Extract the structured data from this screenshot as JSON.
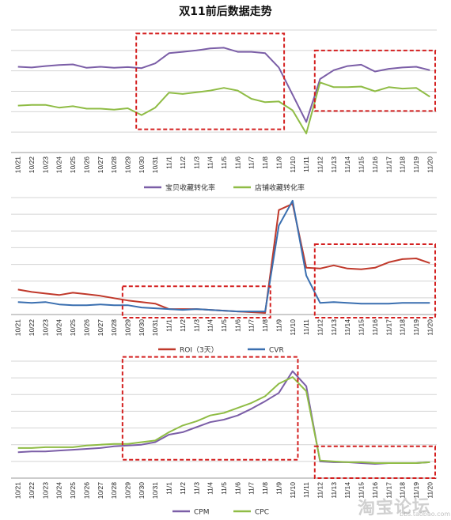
{
  "page_title": "双11前后数据走势",
  "watermark": {
    "brand": "淘宝论坛",
    "url": "bbs.taobao.com"
  },
  "chart_data": [
    {
      "type": "line",
      "x": [
        "10/21",
        "10/22",
        "10/23",
        "10/24",
        "10/25",
        "10/26",
        "10/27",
        "10/28",
        "10/29",
        "10/30",
        "10/31",
        "11/1",
        "11/2",
        "11/3",
        "11/4",
        "11/5",
        "11/6",
        "11/7",
        "11/8",
        "11/9",
        "11/10",
        "11/11",
        "11/12",
        "11/13",
        "11/14",
        "11/15",
        "11/16",
        "11/17",
        "11/18",
        "11/19",
        "11/20"
      ],
      "series": [
        {
          "name": "宝贝收藏转化率",
          "color": "#7b5ea7",
          "values": [
            6.6,
            6.5,
            6.7,
            6.85,
            6.95,
            6.45,
            6.6,
            6.45,
            6.55,
            6.4,
            7.1,
            8.6,
            8.8,
            9.0,
            9.3,
            9.4,
            8.8,
            8.8,
            8.6,
            6.5,
            2.5,
            -1.5,
            4.8,
            6.1,
            6.7,
            6.9,
            5.9,
            6.3,
            6.5,
            6.6,
            6.1
          ]
        },
        {
          "name": "店铺收藏转化率",
          "color": "#8fbc45",
          "values": [
            0.9,
            1.0,
            1.0,
            0.6,
            0.8,
            0.45,
            0.45,
            0.3,
            0.5,
            -0.5,
            0.6,
            2.8,
            2.6,
            2.85,
            3.1,
            3.5,
            3.1,
            1.9,
            1.4,
            1.5,
            0.2,
            -3.2,
            4.3,
            3.6,
            3.6,
            3.7,
            3.0,
            3.6,
            3.4,
            3.5,
            2.2
          ]
        }
      ],
      "ylim": [
        -6,
        12
      ],
      "gridlines": 6,
      "highlight_boxes": [
        {
          "from": "10/30",
          "to": "11/9"
        },
        {
          "from": "11/12",
          "to": "11/20"
        }
      ]
    },
    {
      "type": "line",
      "x": [
        "10/21",
        "10/22",
        "10/23",
        "10/24",
        "10/25",
        "10/26",
        "10/27",
        "10/28",
        "10/29",
        "10/30",
        "10/31",
        "11/1",
        "11/2",
        "11/3",
        "11/4",
        "11/5",
        "11/6",
        "11/7",
        "11/8",
        "11/9",
        "11/10",
        "11/11",
        "11/12",
        "11/13",
        "11/14",
        "11/15",
        "11/16",
        "11/17",
        "11/18",
        "11/19",
        "11/20"
      ],
      "series": [
        {
          "name": "ROI（3天）",
          "color": "#c0392b",
          "values": [
            1.6,
            1.45,
            1.35,
            1.25,
            1.4,
            1.3,
            1.2,
            1.05,
            0.9,
            0.8,
            0.7,
            0.35,
            0.35,
            0.35,
            0.3,
            0.25,
            0.2,
            0.15,
            0.1,
            6.7,
            7.1,
            3.0,
            2.95,
            3.15,
            2.95,
            2.9,
            3.0,
            3.35,
            3.55,
            3.6,
            3.3
          ]
        },
        {
          "name": "CVR",
          "color": "#3a6fb0",
          "values": [
            0.8,
            0.75,
            0.8,
            0.65,
            0.6,
            0.6,
            0.65,
            0.6,
            0.6,
            0.45,
            0.4,
            0.35,
            0.3,
            0.35,
            0.3,
            0.25,
            0.2,
            0.2,
            0.2,
            5.7,
            7.3,
            2.5,
            0.75,
            0.8,
            0.75,
            0.7,
            0.7,
            0.7,
            0.75,
            0.75,
            0.75
          ]
        }
      ],
      "ylim": [
        0,
        7.5
      ],
      "gridlines": 7,
      "highlight_boxes": [
        {
          "from": "10/29",
          "to": "11/8"
        },
        {
          "from": "11/12",
          "to": "11/20"
        }
      ]
    },
    {
      "type": "line",
      "x": [
        "10/21",
        "10/22",
        "10/23",
        "10/24",
        "10/25",
        "10/26",
        "10/27",
        "10/28",
        "10/29",
        "10/30",
        "10/31",
        "11/1",
        "11/2",
        "11/3",
        "11/4",
        "11/5",
        "11/6",
        "11/7",
        "11/8",
        "11/9",
        "11/10",
        "11/11",
        "11/12",
        "11/13",
        "11/14",
        "11/15",
        "11/16",
        "11/17",
        "11/18",
        "11/19",
        "11/20"
      ],
      "series": [
        {
          "name": "CPM",
          "color": "#7b5ea7",
          "values": [
            1.55,
            1.6,
            1.6,
            1.65,
            1.7,
            1.75,
            1.8,
            1.9,
            1.95,
            2.0,
            2.15,
            2.6,
            2.75,
            3.05,
            3.35,
            3.5,
            3.75,
            4.15,
            4.6,
            5.1,
            6.4,
            5.5,
            1.0,
            0.95,
            0.95,
            0.9,
            0.85,
            0.9,
            0.9,
            0.9,
            0.95
          ]
        },
        {
          "name": "CPC",
          "color": "#8fbc45",
          "values": [
            1.8,
            1.8,
            1.85,
            1.85,
            1.85,
            1.95,
            2.0,
            2.05,
            2.05,
            2.15,
            2.25,
            2.75,
            3.15,
            3.4,
            3.75,
            3.9,
            4.2,
            4.5,
            4.9,
            5.65,
            6.05,
            5.2,
            1.05,
            1.0,
            0.95,
            0.95,
            0.9,
            0.9,
            0.9,
            0.9,
            0.95
          ]
        }
      ],
      "ylim": [
        0,
        7
      ],
      "gridlines": 7,
      "highlight_boxes": [
        {
          "from": "10/29",
          "to": "11/10"
        },
        {
          "from": "11/12",
          "to": "11/20"
        }
      ]
    }
  ]
}
